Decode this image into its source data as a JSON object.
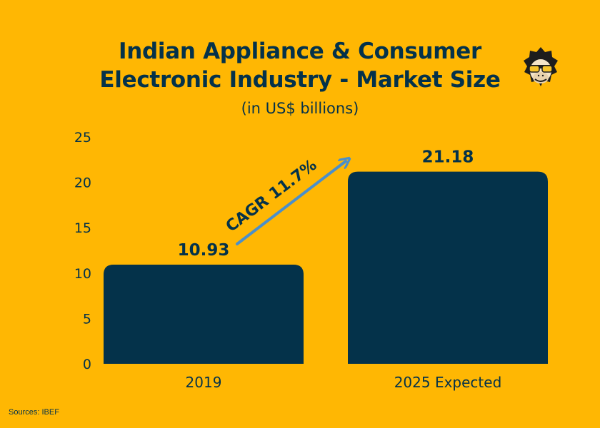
{
  "title_line1": "Indian Appliance & Consumer",
  "title_line2": "Electronic Industry - Market Size",
  "subtitle": "(in US$ billions)",
  "source": "Sources: IBEF",
  "colors": {
    "background": "#FFB703",
    "bar": "#04324A",
    "arrow": "#4A8FCB",
    "text": "#04324A"
  },
  "logo_icon": "monkey-with-sunglasses-icon",
  "chart_data": {
    "type": "bar",
    "title": "Indian Appliance & Consumer Electronic Industry - Market Size",
    "subtitle": "(in US$ billions)",
    "categories": [
      "2019",
      "2025 Expected"
    ],
    "values": [
      10.93,
      21.18
    ],
    "data_labels": [
      "10.93",
      "21.18"
    ],
    "yticks": [
      0,
      5,
      10,
      15,
      20,
      25
    ],
    "ylim": [
      0,
      25
    ],
    "grid": false,
    "annotation": "CAGR 11.7%"
  }
}
